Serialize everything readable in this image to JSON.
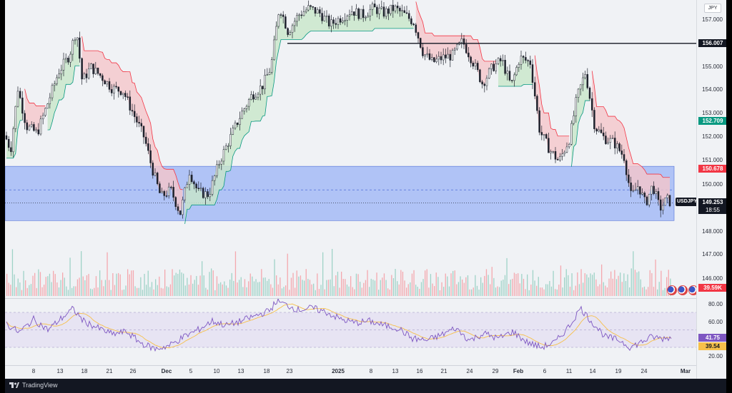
{
  "symbol": "USDJPY",
  "currency": "JPY",
  "price_axis": {
    "ticks": [
      "157.000",
      "155.000",
      "154.000",
      "153.000",
      "152.000",
      "151.000",
      "150.000",
      "148.000",
      "147.000",
      "146.000"
    ]
  },
  "tags": {
    "level_line": "156.007",
    "supertrend_down": "150.678",
    "supertrend_up": "152.709",
    "last_price": "149.253",
    "countdown": "18:55",
    "volume": "39.59K",
    "rsi": "41.75",
    "rsi_ma": "39.54"
  },
  "rsi_axis": {
    "ticks": [
      "80.00",
      "60.00",
      "40.00",
      "20.00"
    ]
  },
  "x_axis": {
    "labels": [
      "8",
      "13",
      "18",
      "21",
      "26",
      "Dec",
      "5",
      "10",
      "13",
      "18",
      "23",
      "2025",
      "8",
      "13",
      "16",
      "21",
      "24",
      "29",
      "Feb",
      "6",
      "11",
      "14",
      "19",
      "24",
      "Mar"
    ]
  },
  "brand": {
    "name": "TradingView"
  },
  "colors": {
    "up": "#089981",
    "down": "#f23645",
    "supertrend_down_fill": "#f5c6cb",
    "supertrend_up_fill": "#c8e6c9",
    "zone": "#7c9cf5",
    "rsi_line": "#7e57c2",
    "rsi_ma": "#f7c04a"
  },
  "chart_data": {
    "type": "candlestick",
    "symbol": "USDJPY",
    "price_range": [
      145.6,
      157.7
    ],
    "horizontal_level": 156.007,
    "demand_zone": [
      148.5,
      150.8
    ],
    "last_price": 149.253,
    "close_path": [
      [
        0,
        152.1
      ],
      [
        8,
        151.5
      ],
      [
        18,
        154.1
      ],
      [
        30,
        152.5
      ],
      [
        45,
        152.2
      ],
      [
        60,
        153.5
      ],
      [
        75,
        154.8
      ],
      [
        90,
        155.5
      ],
      [
        100,
        156.6
      ],
      [
        108,
        154.4
      ],
      [
        120,
        155.0
      ],
      [
        135,
        154.6
      ],
      [
        150,
        154.1
      ],
      [
        165,
        154.0
      ],
      [
        180,
        153.0
      ],
      [
        195,
        152.0
      ],
      [
        205,
        150.8
      ],
      [
        218,
        149.5
      ],
      [
        232,
        149.8
      ],
      [
        245,
        148.8
      ],
      [
        258,
        150.6
      ],
      [
        270,
        149.7
      ],
      [
        285,
        149.6
      ],
      [
        300,
        151.0
      ],
      [
        315,
        152.0
      ],
      [
        330,
        153.0
      ],
      [
        345,
        153.8
      ],
      [
        360,
        154.2
      ],
      [
        372,
        155.0
      ],
      [
        384,
        157.6
      ],
      [
        396,
        156.5
      ],
      [
        410,
        157.2
      ],
      [
        425,
        157.5
      ],
      [
        440,
        157.3
      ],
      [
        455,
        156.8
      ],
      [
        470,
        157.1
      ],
      [
        485,
        157.4
      ],
      [
        500,
        157.2
      ],
      [
        515,
        157.5
      ],
      [
        530,
        157.3
      ],
      [
        545,
        157.5
      ],
      [
        560,
        157.2
      ],
      [
        572,
        156.9
      ],
      [
        585,
        155.6
      ],
      [
        598,
        155.2
      ],
      [
        612,
        155.4
      ],
      [
        626,
        155.5
      ],
      [
        640,
        156.1
      ],
      [
        655,
        155.2
      ],
      [
        668,
        154.3
      ],
      [
        682,
        155.0
      ],
      [
        695,
        155.3
      ],
      [
        708,
        154.2
      ],
      [
        720,
        155.4
      ],
      [
        735,
        155.2
      ],
      [
        748,
        152.3
      ],
      [
        762,
        151.5
      ],
      [
        775,
        151.0
      ],
      [
        790,
        152.0
      ],
      [
        800,
        153.7
      ],
      [
        812,
        154.8
      ],
      [
        825,
        152.5
      ],
      [
        838,
        152.0
      ],
      [
        852,
        151.8
      ],
      [
        866,
        151.2
      ],
      [
        876,
        149.5
      ],
      [
        886,
        150.0
      ],
      [
        896,
        149.2
      ],
      [
        906,
        150.0
      ],
      [
        916,
        149.0
      ],
      [
        926,
        149.4
      ],
      [
        932,
        149.25
      ]
    ],
    "rsi_path": [
      [
        0,
        58
      ],
      [
        20,
        47
      ],
      [
        40,
        62
      ],
      [
        60,
        50
      ],
      [
        80,
        64
      ],
      [
        95,
        74
      ],
      [
        110,
        60
      ],
      [
        130,
        52
      ],
      [
        150,
        45
      ],
      [
        170,
        48
      ],
      [
        190,
        35
      ],
      [
        210,
        28
      ],
      [
        230,
        32
      ],
      [
        250,
        42
      ],
      [
        270,
        50
      ],
      [
        290,
        60
      ],
      [
        310,
        55
      ],
      [
        330,
        60
      ],
      [
        350,
        66
      ],
      [
        370,
        72
      ],
      [
        380,
        83
      ],
      [
        395,
        78
      ],
      [
        410,
        73
      ],
      [
        430,
        75
      ],
      [
        450,
        70
      ],
      [
        470,
        62
      ],
      [
        490,
        58
      ],
      [
        510,
        60
      ],
      [
        530,
        55
      ],
      [
        550,
        52
      ],
      [
        570,
        40
      ],
      [
        590,
        38
      ],
      [
        610,
        44
      ],
      [
        630,
        52
      ],
      [
        650,
        38
      ],
      [
        670,
        46
      ],
      [
        690,
        40
      ],
      [
        710,
        48
      ],
      [
        730,
        36
      ],
      [
        750,
        30
      ],
      [
        770,
        36
      ],
      [
        790,
        55
      ],
      [
        805,
        75
      ],
      [
        820,
        60
      ],
      [
        840,
        42
      ],
      [
        860,
        38
      ],
      [
        875,
        30
      ],
      [
        890,
        36
      ],
      [
        905,
        42
      ],
      [
        920,
        40
      ],
      [
        932,
        41.75
      ]
    ]
  }
}
